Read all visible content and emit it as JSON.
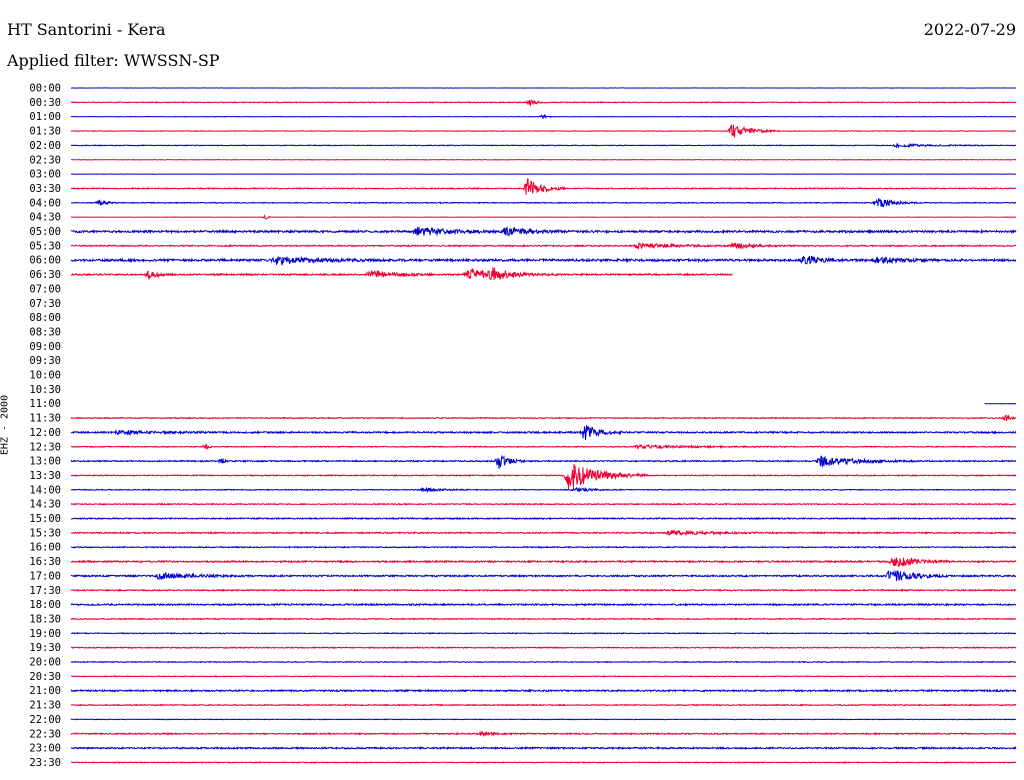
{
  "header": {
    "title": "HT Santorini - Kera",
    "date": "2022-07-29",
    "filter": "Applied filter: WWSSN-SP"
  },
  "channel_label": "EHZ - 2000",
  "colors": {
    "blue": "#0000cc",
    "red": "#ee0033"
  },
  "chart_data": {
    "type": "line",
    "title": "HT Santorini - Kera",
    "subtitle": "Applied filter: WWSSN-SP",
    "date": "2022-07-29",
    "ylabel": "EHZ - 2000",
    "x_unit": "minutes within 30-min row",
    "xlim": [
      0,
      30
    ],
    "row_labels": [
      "00:00",
      "00:30",
      "01:00",
      "01:30",
      "02:00",
      "02:30",
      "03:00",
      "03:30",
      "04:00",
      "04:30",
      "05:00",
      "05:30",
      "06:00",
      "06:30",
      "07:00",
      "07:30",
      "08:00",
      "08:30",
      "09:00",
      "09:30",
      "10:00",
      "10:30",
      "11:00",
      "11:30",
      "12:00",
      "12:30",
      "13:00",
      "13:30",
      "14:00",
      "14:30",
      "15:00",
      "15:30",
      "16:00",
      "16:30",
      "17:00",
      "17:30",
      "18:00",
      "18:30",
      "19:00",
      "19:30",
      "20:00",
      "20:30",
      "21:00",
      "21:30",
      "22:00",
      "22:30",
      "23:00",
      "23:30"
    ],
    "row_colors": [
      "blue",
      "red"
    ],
    "rows": [
      {
        "noise": 0.2,
        "events": []
      },
      {
        "noise": 0.8,
        "events": [
          {
            "t": 14.6,
            "amp": 3,
            "dur": 0.6
          }
        ]
      },
      {
        "noise": 0.4,
        "events": [
          {
            "t": 15.0,
            "amp": 2,
            "dur": 0.3
          }
        ]
      },
      {
        "noise": 0.6,
        "events": [
          {
            "t": 21.0,
            "amp": 8,
            "dur": 1.5
          }
        ]
      },
      {
        "noise": 0.7,
        "events": [
          {
            "t": 26.2,
            "amp": 1.5,
            "dur": 3
          }
        ]
      },
      {
        "noise": 0.5,
        "events": []
      },
      {
        "noise": 0.3,
        "events": []
      },
      {
        "noise": 1.0,
        "events": [
          {
            "t": 14.5,
            "amp": 10,
            "dur": 1.2
          }
        ]
      },
      {
        "noise": 0.8,
        "events": [
          {
            "t": 0.9,
            "amp": 3,
            "dur": 0.6
          },
          {
            "t": 25.6,
            "amp": 5,
            "dur": 1.4
          }
        ]
      },
      {
        "noise": 0.4,
        "events": [
          {
            "t": 6.2,
            "amp": 2,
            "dur": 0.2
          }
        ]
      },
      {
        "noise": 2.0,
        "events": [
          {
            "t": 11.0,
            "amp": 4,
            "dur": 3
          },
          {
            "t": 13.8,
            "amp": 4,
            "dur": 2
          }
        ]
      },
      {
        "noise": 1.2,
        "events": [
          {
            "t": 18.0,
            "amp": 3,
            "dur": 3
          },
          {
            "t": 21.0,
            "amp": 3,
            "dur": 2
          }
        ]
      },
      {
        "noise": 2.2,
        "events": [
          {
            "t": 6.5,
            "amp": 4,
            "dur": 3
          },
          {
            "t": 23.3,
            "amp": 5,
            "dur": 1.2
          },
          {
            "t": 25.6,
            "amp": 3,
            "dur": 2
          }
        ]
      },
      {
        "noise": 1.5,
        "events": [
          {
            "t": 2.5,
            "amp": 5,
            "dur": 0.6
          },
          {
            "t": 9.5,
            "amp": 4,
            "dur": 2
          },
          {
            "t": 12.6,
            "amp": 5,
            "dur": 3
          },
          {
            "t": 13.4,
            "amp": 5,
            "dur": 1
          }
        ],
        "end": 21.0
      },
      {
        "noise": 0,
        "events": [],
        "end": 0
      },
      {
        "noise": 0,
        "events": [],
        "end": 0
      },
      {
        "noise": 0,
        "events": [],
        "end": 0
      },
      {
        "noise": 0,
        "events": [],
        "end": 0
      },
      {
        "noise": 0,
        "events": [],
        "end": 0
      },
      {
        "noise": 0,
        "events": [],
        "end": 0
      },
      {
        "noise": 0,
        "events": [],
        "end": 0
      },
      {
        "noise": 0,
        "events": [],
        "end": 0
      },
      {
        "noise": 0.3,
        "events": [],
        "start": 29.0
      },
      {
        "noise": 1.0,
        "events": [
          {
            "t": 29.7,
            "amp": 3,
            "dur": 0.4
          }
        ]
      },
      {
        "noise": 1.5,
        "events": [
          {
            "t": 16.3,
            "amp": 8,
            "dur": 1.2
          },
          {
            "t": 1.5,
            "amp": 2,
            "dur": 3
          }
        ]
      },
      {
        "noise": 0.9,
        "events": [
          {
            "t": 4.3,
            "amp": 3,
            "dur": 0.2
          },
          {
            "t": 18.0,
            "amp": 1.5,
            "dur": 5
          }
        ]
      },
      {
        "noise": 1.2,
        "events": [
          {
            "t": 13.6,
            "amp": 8,
            "dur": 0.8
          },
          {
            "t": 23.8,
            "amp": 5,
            "dur": 3
          },
          {
            "t": 4.8,
            "amp": 3,
            "dur": 0.2
          }
        ]
      },
      {
        "noise": 1.0,
        "events": [
          {
            "t": 15.8,
            "amp": 14,
            "dur": 2.5
          }
        ]
      },
      {
        "noise": 0.8,
        "events": [
          {
            "t": 11.2,
            "amp": 2,
            "dur": 1.5
          },
          {
            "t": 16.0,
            "amp": 2,
            "dur": 1.5
          }
        ]
      },
      {
        "noise": 1.0,
        "events": []
      },
      {
        "noise": 1.2,
        "events": []
      },
      {
        "noise": 1.2,
        "events": [
          {
            "t": 19.0,
            "amp": 2,
            "dur": 4
          }
        ]
      },
      {
        "noise": 1.0,
        "events": []
      },
      {
        "noise": 1.5,
        "events": [
          {
            "t": 26.1,
            "amp": 6,
            "dur": 1.8
          }
        ]
      },
      {
        "noise": 1.5,
        "events": [
          {
            "t": 26.0,
            "amp": 7,
            "dur": 2
          },
          {
            "t": 2.8,
            "amp": 3,
            "dur": 3
          }
        ]
      },
      {
        "noise": 1.2,
        "events": []
      },
      {
        "noise": 1.5,
        "events": []
      },
      {
        "noise": 1.0,
        "events": []
      },
      {
        "noise": 0.8,
        "events": []
      },
      {
        "noise": 1.0,
        "events": []
      },
      {
        "noise": 0.8,
        "events": []
      },
      {
        "noise": 0.7,
        "events": []
      },
      {
        "noise": 1.5,
        "events": []
      },
      {
        "noise": 1.0,
        "events": []
      },
      {
        "noise": 0.6,
        "events": []
      },
      {
        "noise": 1.2,
        "events": [
          {
            "t": 13.0,
            "amp": 2,
            "dur": 1
          }
        ]
      },
      {
        "noise": 1.5,
        "events": []
      },
      {
        "noise": 0.8,
        "events": []
      }
    ]
  }
}
